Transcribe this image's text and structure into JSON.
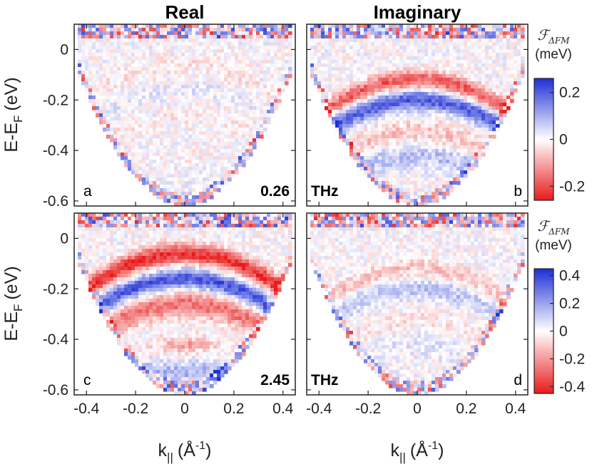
{
  "chart_data": {
    "type": "heatmap",
    "column_titles": [
      "Real",
      "Imaginary"
    ],
    "ylabel_main": "E-E",
    "ylabel_sub": "F",
    "ylabel_unit": "(eV)",
    "xlabel_main": "k",
    "xlabel_sub": "||",
    "xlabel_unit": "(Å",
    "xlabel_exp": "-1",
    "xlabel_close": ")",
    "xlim": [
      -0.45,
      0.45
    ],
    "ylim": [
      -0.62,
      0.1
    ],
    "xticks": [
      -0.4,
      -0.2,
      0,
      0.2,
      0.4
    ],
    "xtick_labels": [
      "-0.4",
      "-0.2",
      "0",
      "0.2",
      "0.4"
    ],
    "yticks": [
      0,
      -0.2,
      -0.4,
      -0.6
    ],
    "ytick_labels": [
      "0",
      "-0.2",
      "-0.4",
      "-0.6"
    ],
    "colormap": {
      "positive": "#1d2fd6",
      "zero": "#ffffff",
      "negative": "#e81a1a"
    },
    "rows": [
      {
        "field_label": "0.26",
        "field_unit": "THz",
        "colorbar": {
          "title_main": "ℱ",
          "title_sub": "ΔFM",
          "unit": "(meV)",
          "range": [
            -0.26,
            0.26
          ],
          "ticks": [
            0.2,
            0,
            -0.2
          ],
          "tick_labels": [
            "0.2",
            "0",
            "-0.2"
          ]
        },
        "panels": [
          {
            "letter": "a",
            "part": "Real",
            "band_strength": 0.1
          },
          {
            "letter": "b",
            "part": "Imaginary",
            "band_strength": 0.85
          }
        ]
      },
      {
        "field_label": "2.45",
        "field_unit": "THz",
        "colorbar": {
          "title_main": "ℱ",
          "title_sub": "ΔFM",
          "unit": "(meV)",
          "range": [
            -0.45,
            0.45
          ],
          "ticks": [
            0.4,
            0.2,
            0,
            -0.2,
            -0.4
          ],
          "tick_labels": [
            "0.4",
            "0.2",
            "0",
            "-0.2",
            "-0.4"
          ]
        },
        "panels": [
          {
            "letter": "c",
            "part": "Real",
            "band_strength": 1.0
          },
          {
            "letter": "d",
            "part": "Imaginary",
            "band_strength": 0.3
          }
        ]
      }
    ]
  }
}
